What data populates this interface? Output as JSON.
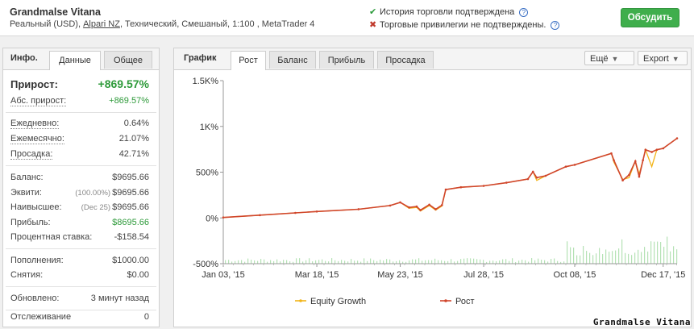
{
  "header": {
    "account_name": "Grandmalse Vitana",
    "sub_prefix": "Реальный (USD), ",
    "broker": "Alpari NZ",
    "sub_suffix": ", Технический, Смешаный, 1:100 , MetaTrader 4",
    "verify_history": "История торговли подтверждена",
    "verify_privileges": "Торговые привилегии не подтверждены.",
    "help_glyph": "?",
    "discuss_button": "Обсудить"
  },
  "left_tabs": {
    "label": "Инфо.",
    "tab_data": "Данные",
    "tab_general": "Общее"
  },
  "stats": {
    "growth": {
      "label": "Прирост:",
      "value": "+869.57%"
    },
    "abs_growth": {
      "label": "Абс. прирост:",
      "value": "+869.57%"
    },
    "daily": {
      "label": "Ежедневно:",
      "value": "0.64%"
    },
    "monthly": {
      "label": "Ежемесячно:",
      "value": "21.07%"
    },
    "drawdown": {
      "label": "Просадка:",
      "value": "42.71%"
    },
    "balance": {
      "label": "Баланс:",
      "value": "$9695.66"
    },
    "equity": {
      "label": "Эквити:",
      "extra": "(100.00%)",
      "value": "$9695.66"
    },
    "highest": {
      "label": "Наивысшее:",
      "extra": "(Dec 25)",
      "value": "$9695.66"
    },
    "profit": {
      "label": "Прибыль:",
      "value": "$8695.66"
    },
    "interest": {
      "label": "Процентная ставка:",
      "value": "-$158.54"
    },
    "deposits": {
      "label": "Пополнения:",
      "value": "$1000.00"
    },
    "withdrawals": {
      "label": "Снятия:",
      "value": "$0.00"
    },
    "updated": {
      "label": "Обновлено:",
      "value": "3 минут назад"
    },
    "tracking": {
      "label": "Отслеживание",
      "value": "0"
    }
  },
  "chart_tabs": {
    "label": "График",
    "tabs": [
      "Рост",
      "Баланс",
      "Прибыль",
      "Просадка"
    ],
    "more_button": "Ещё",
    "export_button": "Export"
  },
  "colors": {
    "growth_line": "#d0452b",
    "equity_line": "#f2b418",
    "volume": "#b5e2b5",
    "accent_green": "#3fae4c"
  },
  "chart_data": {
    "type": "line",
    "y_ticks": [
      "1.5K%",
      "1K%",
      "500%",
      "0%",
      "-500%"
    ],
    "ylim": [
      -500,
      1500
    ],
    "x_ticks": [
      "Jan 03, '15",
      "Mar 18, '15",
      "May 23, '15",
      "Jul 28, '15",
      "Oct 08, '15",
      "Dec 17, '15"
    ],
    "xlim": [
      "2015-01-03",
      "2015-12-28"
    ],
    "legend": [
      "Equity Growth",
      "Рост"
    ],
    "series": [
      {
        "name": "Рост",
        "points": [
          [
            "2015-01-03",
            5
          ],
          [
            "2015-02-01",
            30
          ],
          [
            "2015-03-01",
            55
          ],
          [
            "2015-03-18",
            70
          ],
          [
            "2015-04-20",
            95
          ],
          [
            "2015-05-15",
            135
          ],
          [
            "2015-05-23",
            170
          ],
          [
            "2015-05-30",
            115
          ],
          [
            "2015-06-05",
            125
          ],
          [
            "2015-06-08",
            85
          ],
          [
            "2015-06-15",
            145
          ],
          [
            "2015-06-20",
            95
          ],
          [
            "2015-06-25",
            140
          ],
          [
            "2015-06-28",
            310
          ],
          [
            "2015-07-10",
            335
          ],
          [
            "2015-07-28",
            350
          ],
          [
            "2015-08-15",
            385
          ],
          [
            "2015-09-01",
            425
          ],
          [
            "2015-09-05",
            505
          ],
          [
            "2015-09-08",
            440
          ],
          [
            "2015-09-15",
            460
          ],
          [
            "2015-10-01",
            560
          ],
          [
            "2015-10-08",
            580
          ],
          [
            "2015-11-06",
            705
          ],
          [
            "2015-11-08",
            630
          ],
          [
            "2015-11-15",
            410
          ],
          [
            "2015-11-20",
            470
          ],
          [
            "2015-11-25",
            620
          ],
          [
            "2015-11-28",
            450
          ],
          [
            "2015-12-01",
            630
          ],
          [
            "2015-12-03",
            745
          ],
          [
            "2015-12-08",
            720
          ],
          [
            "2015-12-12",
            745
          ],
          [
            "2015-12-17",
            760
          ],
          [
            "2015-12-28",
            870
          ]
        ]
      },
      {
        "name": "Equity Growth",
        "points": [
          [
            "2015-01-03",
            5
          ],
          [
            "2015-02-01",
            30
          ],
          [
            "2015-03-01",
            55
          ],
          [
            "2015-03-18",
            70
          ],
          [
            "2015-04-20",
            95
          ],
          [
            "2015-05-15",
            135
          ],
          [
            "2015-05-23",
            170
          ],
          [
            "2015-05-30",
            105
          ],
          [
            "2015-06-05",
            115
          ],
          [
            "2015-06-08",
            75
          ],
          [
            "2015-06-15",
            135
          ],
          [
            "2015-06-20",
            85
          ],
          [
            "2015-06-25",
            130
          ],
          [
            "2015-06-28",
            310
          ],
          [
            "2015-07-10",
            335
          ],
          [
            "2015-07-28",
            350
          ],
          [
            "2015-08-15",
            385
          ],
          [
            "2015-09-01",
            425
          ],
          [
            "2015-09-05",
            505
          ],
          [
            "2015-09-08",
            410
          ],
          [
            "2015-09-15",
            460
          ],
          [
            "2015-10-01",
            560
          ],
          [
            "2015-10-08",
            580
          ],
          [
            "2015-11-06",
            705
          ],
          [
            "2015-11-08",
            610
          ],
          [
            "2015-11-15",
            420
          ],
          [
            "2015-11-20",
            440
          ],
          [
            "2015-11-25",
            620
          ],
          [
            "2015-11-28",
            480
          ],
          [
            "2015-12-01",
            630
          ],
          [
            "2015-12-03",
            745
          ],
          [
            "2015-12-08",
            560
          ],
          [
            "2015-12-12",
            745
          ],
          [
            "2015-12-17",
            760
          ],
          [
            "2015-12-28",
            870
          ]
        ]
      }
    ],
    "grid": false,
    "legend_position": "bottom"
  }
}
